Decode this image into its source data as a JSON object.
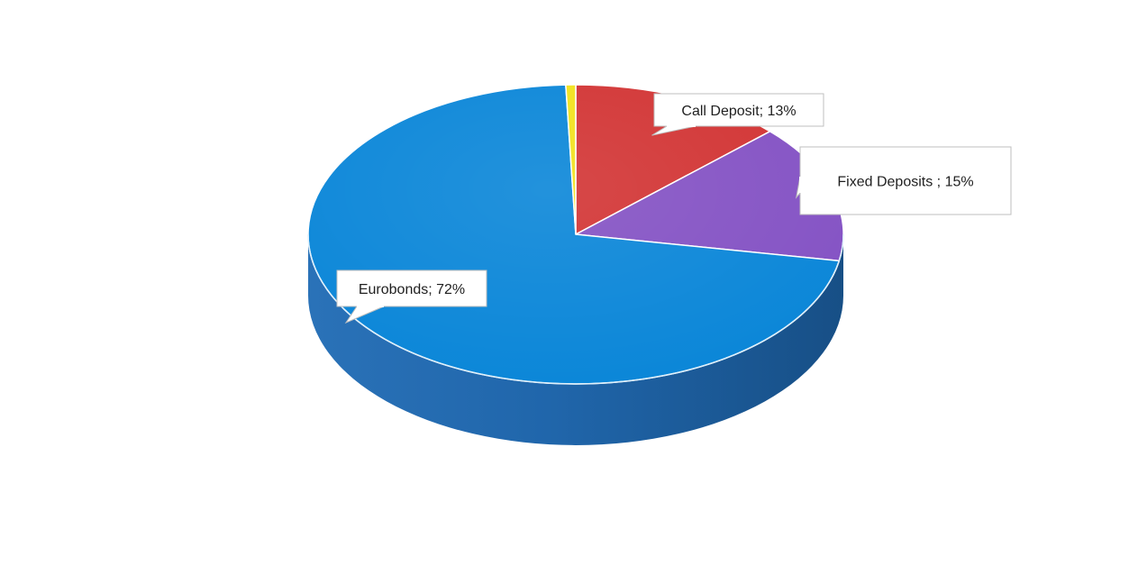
{
  "chart_data": {
    "type": "pie",
    "style": "3d",
    "title": "",
    "slices": [
      {
        "name": "Call Deposit",
        "value": 13,
        "label": "Call Deposit; 13%",
        "color": "#d23434"
      },
      {
        "name": "Fixed Deposits",
        "value": 15,
        "label": "Fixed Deposits  ; 15%",
        "color": "#8452c4"
      },
      {
        "name": "Eurobonds",
        "value": 72,
        "label": "Eurobonds; 72%",
        "color": "#0a86d8"
      },
      {
        "name": "",
        "value": 0.6,
        "label": "",
        "color": "#f2e21c"
      }
    ],
    "side_color": "#1d63a6",
    "legend": "none"
  }
}
